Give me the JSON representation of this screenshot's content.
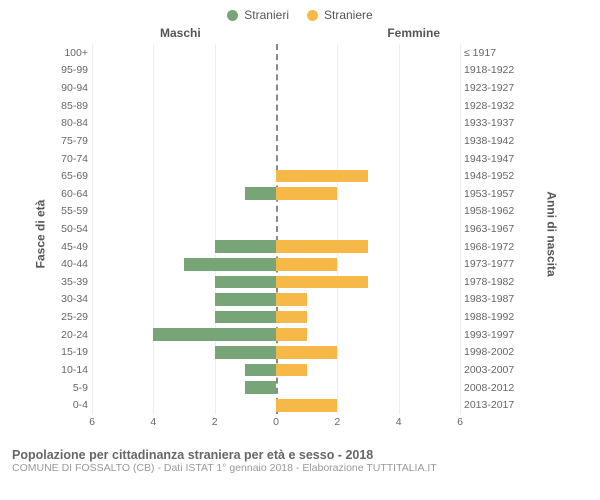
{
  "legend": {
    "male": {
      "label": "Stranieri",
      "color": "#77a578"
    },
    "female": {
      "label": "Straniere",
      "color": "#f6b846"
    }
  },
  "headers": {
    "left": "Maschi",
    "right": "Femmine"
  },
  "axis_titles": {
    "left": "Fasce di età",
    "right": "Anni di nascita"
  },
  "xmax": 6,
  "xticks_left": [
    6,
    4,
    2,
    0
  ],
  "xticks_right": [
    2,
    4,
    6
  ],
  "background": "#ffffff",
  "grid_color": "#eeeeee",
  "divider_color": "#888888",
  "label_fontsize": 10.5,
  "header_fontsize": 12,
  "rows": [
    {
      "age": "100+",
      "birth": "≤ 1917",
      "m": 0,
      "f": 0
    },
    {
      "age": "95-99",
      "birth": "1918-1922",
      "m": 0,
      "f": 0
    },
    {
      "age": "90-94",
      "birth": "1923-1927",
      "m": 0,
      "f": 0
    },
    {
      "age": "85-89",
      "birth": "1928-1932",
      "m": 0,
      "f": 0
    },
    {
      "age": "80-84",
      "birth": "1933-1937",
      "m": 0,
      "f": 0
    },
    {
      "age": "75-79",
      "birth": "1938-1942",
      "m": 0,
      "f": 0
    },
    {
      "age": "70-74",
      "birth": "1943-1947",
      "m": 0,
      "f": 0
    },
    {
      "age": "65-69",
      "birth": "1948-1952",
      "m": 0,
      "f": 3
    },
    {
      "age": "60-64",
      "birth": "1953-1957",
      "m": 1,
      "f": 2
    },
    {
      "age": "55-59",
      "birth": "1958-1962",
      "m": 0,
      "f": 0
    },
    {
      "age": "50-54",
      "birth": "1963-1967",
      "m": 0,
      "f": 0
    },
    {
      "age": "45-49",
      "birth": "1968-1972",
      "m": 2,
      "f": 3
    },
    {
      "age": "40-44",
      "birth": "1973-1977",
      "m": 3,
      "f": 2
    },
    {
      "age": "35-39",
      "birth": "1978-1982",
      "m": 2,
      "f": 3
    },
    {
      "age": "30-34",
      "birth": "1983-1987",
      "m": 2,
      "f": 1
    },
    {
      "age": "25-29",
      "birth": "1988-1992",
      "m": 2,
      "f": 1
    },
    {
      "age": "20-24",
      "birth": "1993-1997",
      "m": 4,
      "f": 1
    },
    {
      "age": "15-19",
      "birth": "1998-2002",
      "m": 2,
      "f": 2
    },
    {
      "age": "10-14",
      "birth": "2003-2007",
      "m": 1,
      "f": 1
    },
    {
      "age": "5-9",
      "birth": "2008-2012",
      "m": 1,
      "f": 0
    },
    {
      "age": "0-4",
      "birth": "2013-2017",
      "m": 0,
      "f": 2
    }
  ],
  "footer": {
    "title": "Popolazione per cittadinanza straniera per età e sesso - 2018",
    "subtitle": "COMUNE DI FOSSALTO (CB) - Dati ISTAT 1° gennaio 2018 - Elaborazione TUTTITALIA.IT"
  }
}
